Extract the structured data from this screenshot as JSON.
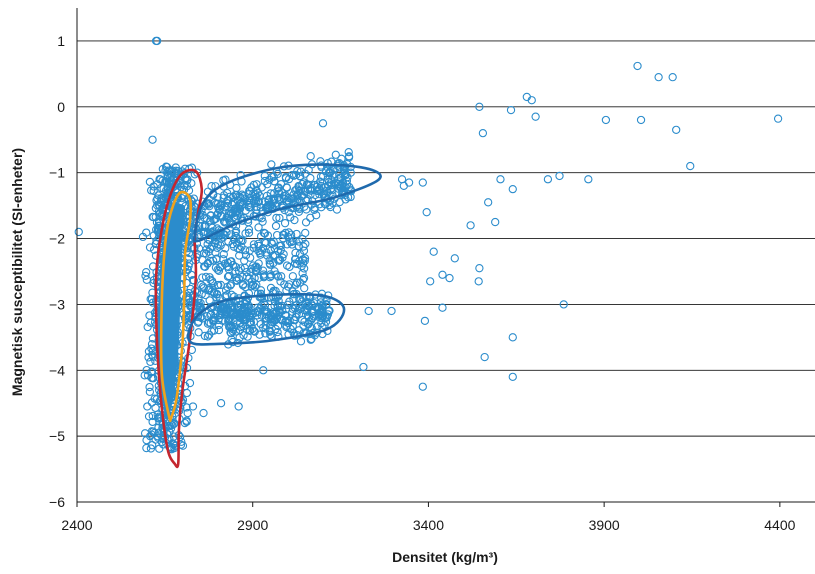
{
  "chart_data": {
    "type": "scatter",
    "title": "",
    "xlabel": "Densitet (kg/m³)",
    "ylabel": "Magnetisk susceptibilitet (SI-enheter)",
    "xlim": [
      2400,
      4500
    ],
    "ylim": [
      -6,
      1.5
    ],
    "xticks": [
      2400,
      2900,
      3400,
      3900,
      4400
    ],
    "xtick_labels": [
      "2400",
      "2900",
      "3400",
      "3900",
      "4400"
    ],
    "yticks": [
      1,
      0,
      -1,
      -2,
      -3,
      -4,
      -5,
      -6
    ],
    "ytick_labels": [
      "1",
      "0",
      "−1",
      "−2",
      "−3",
      "−4",
      "−5",
      "−6"
    ],
    "grid": "horizontal",
    "colors": {
      "points": "#2b8ccc",
      "dense_core": "#2b8ccc",
      "contour_red": "#c4262e",
      "contour_orange": "#f0a21c",
      "contour_blue": "#1f6aad"
    },
    "series": [
      {
        "marker": "open-circle",
        "x": [
          2405,
          2625,
          2628,
          3545,
          3680,
          3694,
          3705,
          3555,
          3905,
          3995,
          4005,
          4055,
          4095,
          4145,
          3635,
          4105,
          4395,
          3605,
          3740,
          3773,
          3855,
          3325,
          3345,
          3384,
          3330,
          3395,
          3415,
          3440,
          3475,
          3520,
          3545,
          3570,
          3590,
          3640,
          3543,
          3405,
          3460,
          3440,
          3390,
          3560,
          3640,
          3785,
          3215,
          3295,
          3230,
          3384,
          3640,
          2860,
          2930,
          2810,
          2760,
          2730,
          2715,
          3100,
          3065,
          2615,
          2600,
          2605,
          2608
        ],
        "y": [
          -1.9,
          1.0,
          1.0,
          0.0,
          0.15,
          0.1,
          -0.15,
          -0.4,
          -0.2,
          0.62,
          -0.2,
          0.45,
          0.45,
          -0.9,
          -0.05,
          -0.35,
          -0.18,
          -1.1,
          -1.1,
          -1.05,
          -1.1,
          -1.1,
          -1.15,
          -1.15,
          -1.2,
          -1.6,
          -2.2,
          -2.55,
          -2.3,
          -1.8,
          -2.45,
          -1.45,
          -1.75,
          -1.25,
          -2.65,
          -2.65,
          -2.6,
          -3.05,
          -3.25,
          -3.8,
          -3.5,
          -3.0,
          -3.95,
          -3.1,
          -3.1,
          -4.25,
          -4.1,
          -4.55,
          -4.0,
          -4.5,
          -4.65,
          -4.55,
          -4.65,
          -0.25,
          -0.75,
          -0.5,
          -4.55,
          -4.7,
          -5.0
        ]
      }
    ],
    "clusters": [
      {
        "x_range": [
          2570,
          2760
        ],
        "y_range": [
          -5.3,
          -0.8
        ],
        "count": 650
      },
      {
        "x_range": [
          2700,
          3180
        ],
        "y_range": [
          -2.0,
          -0.9
        ],
        "count": 450
      },
      {
        "x_range": [
          2700,
          3120
        ],
        "y_range": [
          -3.6,
          -2.7
        ],
        "count": 380
      },
      {
        "x_range": [
          2700,
          3050
        ],
        "y_range": [
          -2.9,
          -1.9
        ],
        "count": 280
      }
    ],
    "contours": [
      {
        "color": "red",
        "points": [
          [
            2678,
            -5.42
          ],
          [
            2658,
            -5.2
          ],
          [
            2640,
            -4.5
          ],
          [
            2628,
            -3.6
          ],
          [
            2625,
            -2.6
          ],
          [
            2640,
            -1.9
          ],
          [
            2665,
            -1.35
          ],
          [
            2698,
            -1.02
          ],
          [
            2738,
            -0.98
          ],
          [
            2755,
            -1.25
          ],
          [
            2745,
            -1.6
          ],
          [
            2735,
            -2.0
          ],
          [
            2738,
            -2.6
          ],
          [
            2722,
            -3.5
          ],
          [
            2700,
            -4.3
          ],
          [
            2690,
            -4.9
          ],
          [
            2688,
            -5.42
          ]
        ]
      },
      {
        "color": "orange",
        "points": [
          [
            2662,
            -4.7
          ],
          [
            2642,
            -4.1
          ],
          [
            2640,
            -3.3
          ],
          [
            2646,
            -2.4
          ],
          [
            2660,
            -1.75
          ],
          [
            2690,
            -1.32
          ],
          [
            2720,
            -1.38
          ],
          [
            2722,
            -1.7
          ],
          [
            2708,
            -2.2
          ],
          [
            2705,
            -2.9
          ],
          [
            2700,
            -3.6
          ],
          [
            2684,
            -4.4
          ],
          [
            2668,
            -4.72
          ]
        ]
      },
      {
        "color": "blue",
        "points": [
          [
            2735,
            -1.95
          ],
          [
            2760,
            -1.45
          ],
          [
            2830,
            -1.15
          ],
          [
            2980,
            -0.92
          ],
          [
            3130,
            -0.88
          ],
          [
            3240,
            -0.96
          ],
          [
            3255,
            -1.12
          ],
          [
            3130,
            -1.38
          ],
          [
            2980,
            -1.55
          ],
          [
            2850,
            -1.78
          ],
          [
            2748,
            -2.03
          ]
        ]
      },
      {
        "color": "blue",
        "points": [
          [
            2722,
            -3.35
          ],
          [
            2758,
            -3.1
          ],
          [
            2830,
            -2.93
          ],
          [
            2980,
            -2.85
          ],
          [
            3110,
            -2.88
          ],
          [
            3160,
            -3.08
          ],
          [
            3110,
            -3.38
          ],
          [
            2950,
            -3.55
          ],
          [
            2800,
            -3.6
          ],
          [
            2725,
            -3.58
          ]
        ]
      }
    ]
  }
}
